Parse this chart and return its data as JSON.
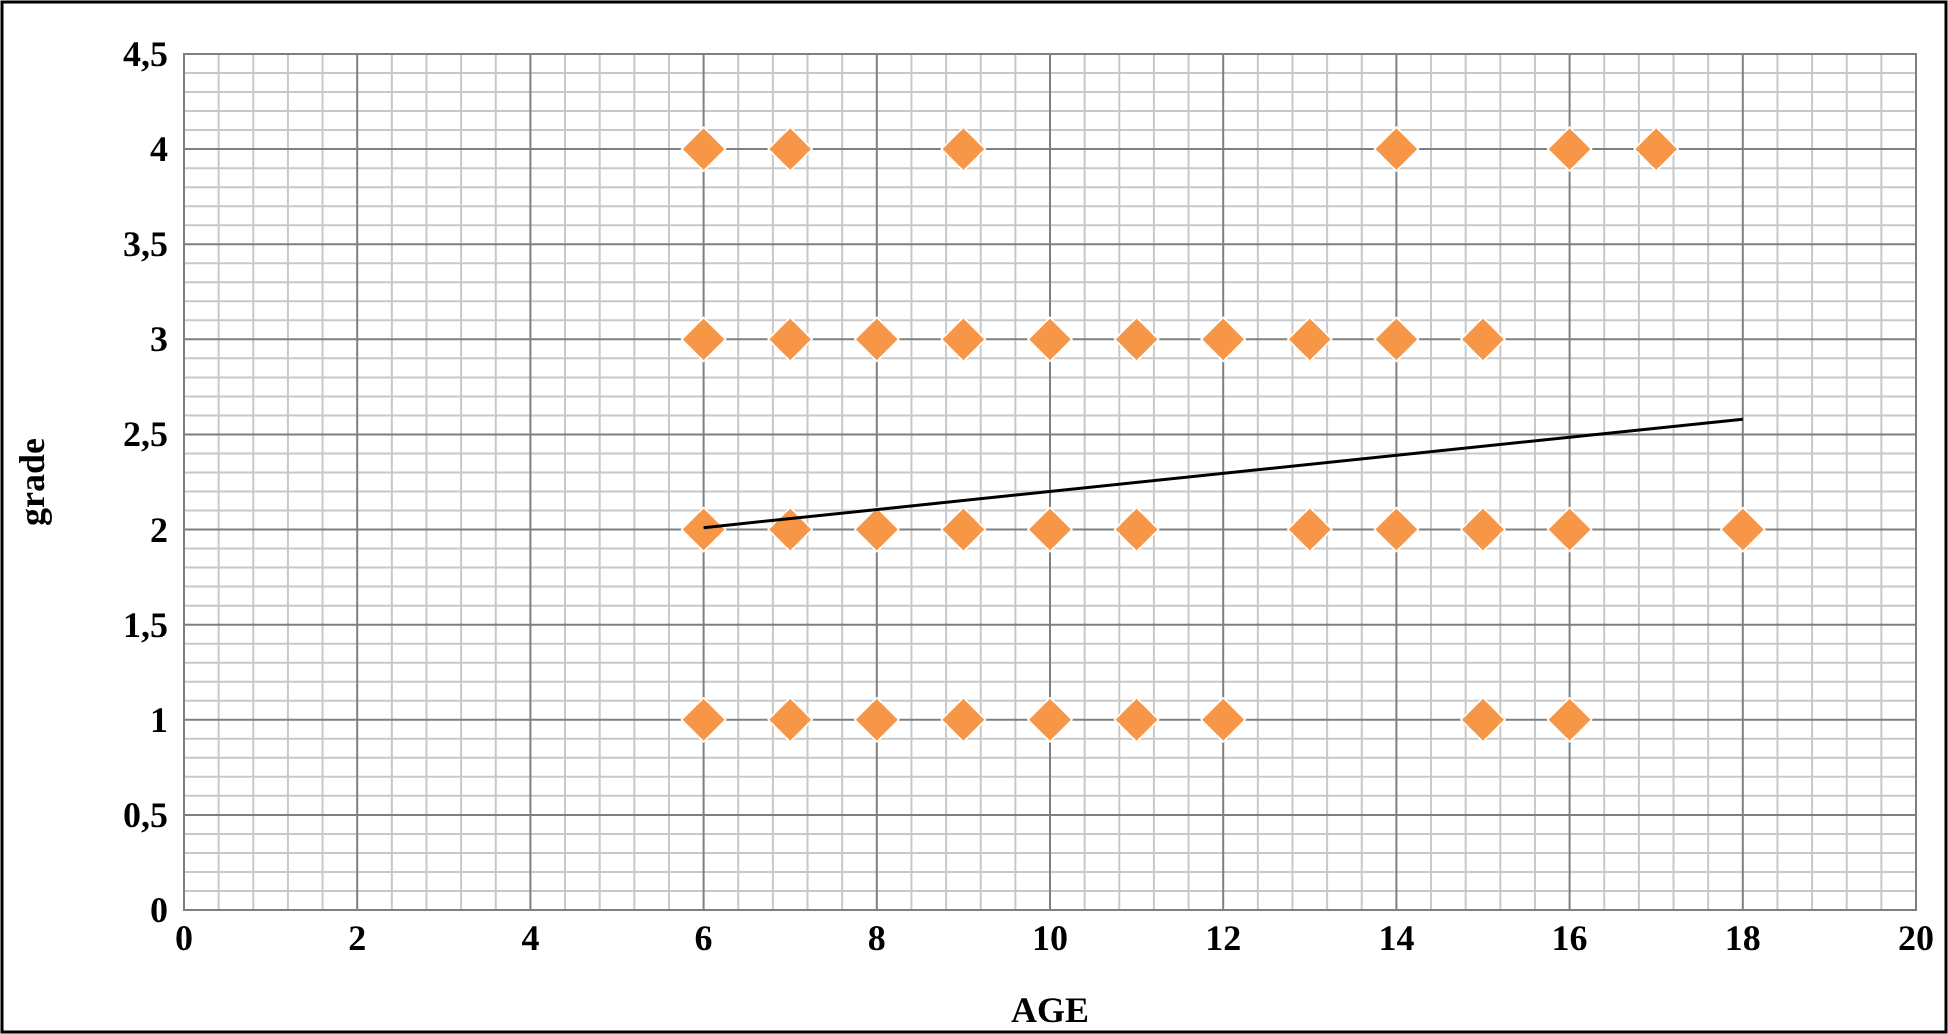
{
  "chart_data": {
    "type": "scatter",
    "xlabel": "AGE",
    "ylabel": "grade",
    "grid": true,
    "marker": "diamond",
    "xlim": [
      0,
      20
    ],
    "xticks": [
      0,
      2,
      4,
      6,
      8,
      10,
      12,
      14,
      16,
      18,
      20
    ],
    "ylim": [
      0,
      4.5
    ],
    "yticks": [
      0,
      {
        "value": 0.5,
        "label": "0,5"
      },
      1,
      {
        "value": 1.5,
        "label": "1,5"
      },
      2,
      {
        "value": 2.5,
        "label": "2,5"
      },
      3,
      {
        "value": 3.5,
        "label": "3,5"
      },
      4,
      {
        "value": 4.5,
        "label": "4,5"
      }
    ],
    "series": [
      {
        "color": "#f79646",
        "x": [
          6,
          7,
          9,
          14,
          16,
          17,
          6,
          7,
          8,
          9,
          10,
          11,
          12,
          13,
          14,
          15,
          6,
          7,
          8,
          9,
          10,
          11,
          13,
          14,
          15,
          16,
          18,
          6,
          7,
          8,
          9,
          10,
          11,
          12,
          15,
          16
        ],
        "values": [
          4,
          4,
          4,
          4,
          4,
          4,
          3,
          3,
          3,
          3,
          3,
          3,
          3,
          3,
          3,
          3,
          2,
          2,
          2,
          2,
          2,
          2,
          2,
          2,
          2,
          2,
          2,
          1,
          1,
          1,
          1,
          1,
          1,
          1,
          1,
          1
        ]
      },
      {
        "type": "line",
        "color": "#000000",
        "marker": "none",
        "line_style": "solid",
        "x": [
          6,
          18
        ],
        "values": [
          2.01,
          2.58
        ]
      }
    ]
  }
}
